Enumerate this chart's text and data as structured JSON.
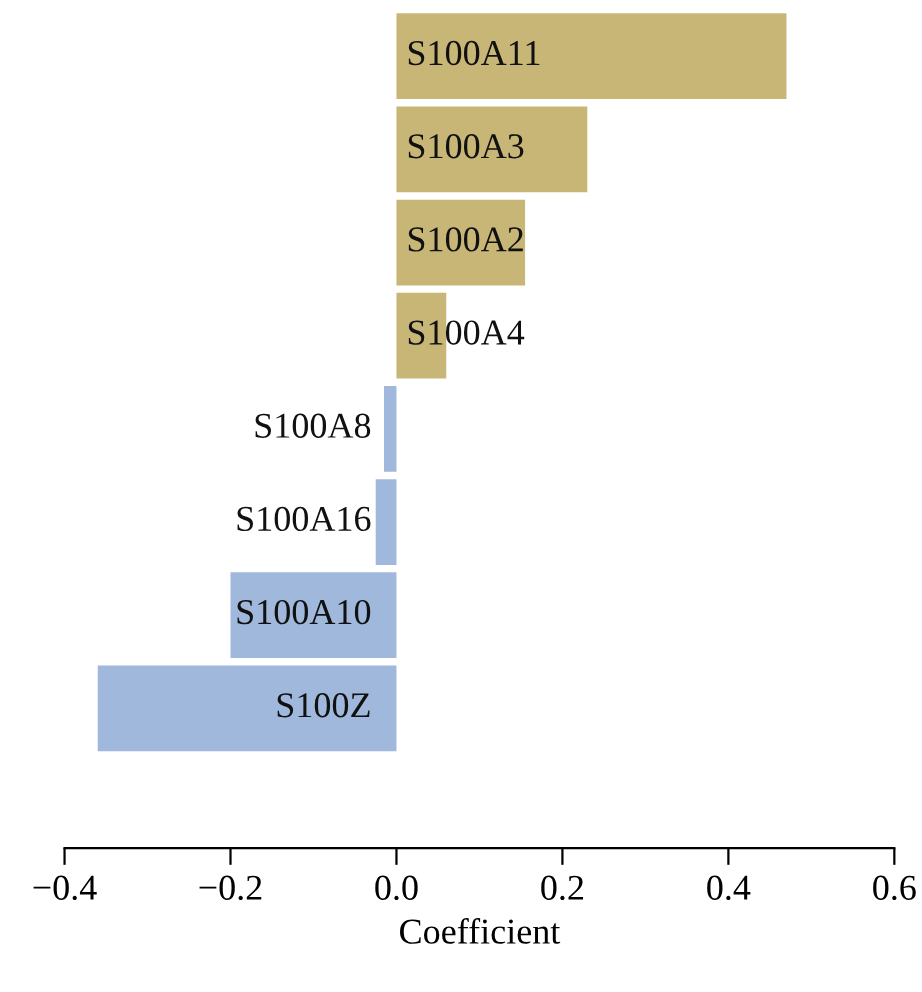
{
  "chart_data": {
    "type": "bar",
    "orientation": "horizontal",
    "xlabel": "Coefficient",
    "categories": [
      "S100A11",
      "S100A3",
      "S100A2",
      "S100A4",
      "S100A8",
      "S100A16",
      "S100A10",
      "S100Z"
    ],
    "values": [
      0.47,
      0.23,
      0.155,
      0.06,
      -0.015,
      -0.025,
      -0.2,
      -0.36
    ],
    "colors": [
      "#c8b677",
      "#c8b677",
      "#c8b677",
      "#c8b677",
      "#9fb8dc",
      "#9fb8dc",
      "#9fb8dc",
      "#9fb8dc"
    ],
    "xlim": [
      -0.4,
      0.6
    ],
    "xticks": [
      {
        "value": -0.4,
        "label": "−0.4"
      },
      {
        "value": -0.2,
        "label": "−0.2"
      },
      {
        "value": 0,
        "label": "0.0"
      },
      {
        "value": 0.2,
        "label": "0.2"
      },
      {
        "value": 0.4,
        "label": "0.4"
      },
      {
        "value": 0.6,
        "label": "0.6"
      }
    ],
    "grid": false,
    "legend": false
  }
}
